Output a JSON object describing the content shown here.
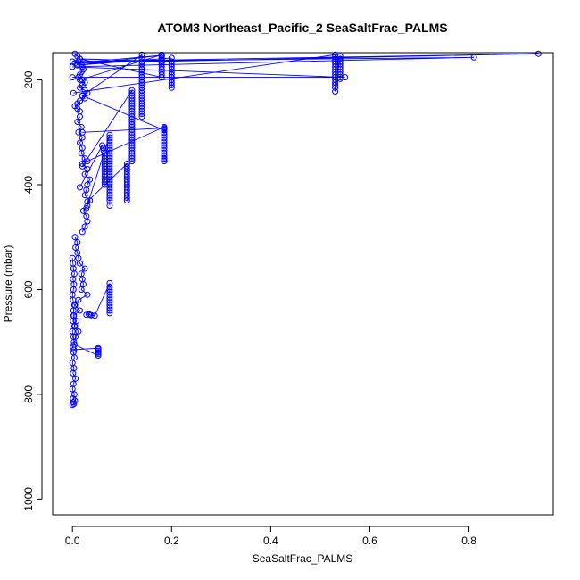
{
  "chart_data": {
    "type": "line",
    "title": "ATOM3 Northeast_Pacific_2 SeaSaltFrac_PALMS",
    "xlabel": "SeaSaltFrac_PALMS",
    "ylabel": "Pressure (mbar)",
    "xlim": [
      -0.04,
      0.97
    ],
    "ylim": [
      1030,
      148
    ],
    "y_reversed": true,
    "x_ticks": [
      0.0,
      0.2,
      0.4,
      0.6,
      0.8
    ],
    "x_tick_labels": [
      "0.0",
      "0.2",
      "0.4",
      "0.6",
      "0.8"
    ],
    "y_ticks": [
      200,
      400,
      600,
      800,
      1000
    ],
    "y_tick_labels": [
      "200",
      "400",
      "600",
      "800",
      "1000"
    ],
    "grid": false,
    "marker": "open-circle",
    "colors": {
      "series": "#0000ff",
      "axes": "#000000",
      "background": "#ffffff"
    },
    "series": [
      {
        "x": [
          0.0,
          0.003,
          0.002,
          0.005,
          0.001,
          0.004,
          0.0,
          0.002,
          0.006,
          0.001,
          0.003,
          0.0,
          0.004,
          0.002,
          0.001,
          0.003,
          0.002,
          0.0,
          0.005,
          0.001,
          0.003,
          0.002,
          0.004,
          0.001,
          0.0,
          0.002,
          0.003,
          0.001,
          0.004,
          0.002,
          0.001,
          0.0
        ],
        "y": [
          820,
          818,
          815,
          812,
          808,
          800,
          790,
          780,
          770,
          760,
          750,
          740,
          730,
          720,
          710,
          700,
          690,
          680,
          670,
          660,
          650,
          640,
          630,
          620,
          610,
          600,
          590,
          580,
          570,
          560,
          550,
          540
        ]
      },
      {
        "x": [
          0.003,
          0.052,
          0.052,
          0.052,
          0.052,
          0.052,
          0.052,
          0.004,
          0.006,
          0.012,
          0.004,
          0.008,
          0.002,
          0.015,
          0.005,
          0.012,
          0.03,
          0.018,
          0.022,
          0.02,
          0.018,
          0.025,
          0.015,
          0.012,
          0.01,
          0.006,
          0.01,
          0.005
        ],
        "y": [
          715,
          712,
          714,
          717,
          720,
          723,
          726,
          705,
          690,
          680,
          670,
          660,
          650,
          640,
          630,
          620,
          610,
          600,
          590,
          580,
          570,
          560,
          550,
          540,
          530,
          520,
          510,
          500
        ]
      },
      {
        "x": [
          0.028,
          0.033,
          0.035,
          0.038,
          0.045,
          0.075,
          0.075,
          0.075,
          0.075,
          0.075,
          0.075,
          0.075,
          0.075,
          0.075,
          0.075,
          0.075,
          0.075
        ],
        "y": [
          648,
          647,
          648,
          649,
          650,
          588,
          595,
          600,
          605,
          610,
          615,
          620,
          625,
          630,
          635,
          640,
          645
        ]
      },
      {
        "x": [
          0.02,
          0.025,
          0.03,
          0.028,
          0.022,
          0.03,
          0.035,
          0.025,
          0.028,
          0.03,
          0.035,
          0.025,
          0.03,
          0.02,
          0.025,
          0.018,
          0.02,
          0.015,
          0.02,
          0.012,
          0.018,
          0.01,
          0.015
        ],
        "y": [
          490,
          480,
          470,
          460,
          450,
          440,
          430,
          420,
          410,
          400,
          390,
          380,
          370,
          360,
          350,
          340,
          330,
          320,
          310,
          300,
          290,
          280,
          270
        ]
      },
      {
        "x": [
          0.015,
          0.06,
          0.062,
          0.063,
          0.065,
          0.065,
          0.065,
          0.065,
          0.065,
          0.065,
          0.065,
          0.065,
          0.065,
          0.065,
          0.065,
          0.065,
          0.065
        ],
        "y": [
          405,
          325,
          330,
          335,
          340,
          345,
          350,
          355,
          360,
          365,
          370,
          375,
          380,
          385,
          390,
          395,
          400
        ]
      },
      {
        "x": [
          0.028,
          0.075,
          0.075,
          0.075,
          0.075,
          0.075,
          0.075,
          0.075,
          0.075,
          0.075,
          0.075,
          0.075,
          0.075,
          0.075,
          0.075,
          0.075,
          0.075,
          0.075,
          0.075,
          0.075,
          0.075,
          0.075,
          0.075,
          0.075,
          0.075,
          0.075,
          0.075,
          0.075
        ],
        "y": [
          445,
          305,
          310,
          315,
          320,
          325,
          330,
          335,
          340,
          345,
          350,
          355,
          360,
          365,
          370,
          375,
          380,
          385,
          390,
          395,
          400,
          405,
          410,
          415,
          420,
          425,
          430,
          440
        ]
      },
      {
        "x": [
          0.03,
          0.11,
          0.11,
          0.11,
          0.11,
          0.11,
          0.11,
          0.11,
          0.11,
          0.11,
          0.11,
          0.11,
          0.11,
          0.11,
          0.11,
          0.11
        ],
        "y": [
          432,
          360,
          365,
          370,
          375,
          380,
          385,
          390,
          395,
          400,
          405,
          410,
          415,
          420,
          425,
          430
        ]
      },
      {
        "x": [
          0.02,
          0.12,
          0.12,
          0.12,
          0.12,
          0.12,
          0.12,
          0.12,
          0.12,
          0.12,
          0.12,
          0.12,
          0.12,
          0.12,
          0.12,
          0.12,
          0.12,
          0.12,
          0.12,
          0.12,
          0.12,
          0.12,
          0.12,
          0.12,
          0.12,
          0.12,
          0.12,
          0.12,
          0.12
        ],
        "y": [
          365,
          220,
          225,
          230,
          235,
          240,
          245,
          250,
          255,
          260,
          265,
          270,
          275,
          280,
          285,
          290,
          295,
          300,
          305,
          310,
          315,
          320,
          325,
          330,
          335,
          340,
          345,
          350,
          355
        ]
      },
      {
        "x": [
          0.03,
          0.185,
          0.185,
          0.185,
          0.185,
          0.185,
          0.185,
          0.185,
          0.185,
          0.185,
          0.185,
          0.185,
          0.185,
          0.185,
          0.185,
          0.185
        ],
        "y": [
          355,
          290,
          295,
          300,
          305,
          310,
          315,
          320,
          325,
          330,
          335,
          340,
          345,
          350,
          352,
          355
        ]
      },
      {
        "x": [
          0.02,
          0.185,
          0.185,
          0.185,
          0.02,
          0.14,
          0.14,
          0.14,
          0.14,
          0.14,
          0.14,
          0.14,
          0.14,
          0.14,
          0.14,
          0.14,
          0.14,
          0.14,
          0.14,
          0.14,
          0.14,
          0.14,
          0.14,
          0.14,
          0.14,
          0.14,
          0.14,
          0.14,
          0.14
        ],
        "y": [
          300,
          292,
          294,
          296,
          230,
          152,
          160,
          165,
          170,
          175,
          180,
          185,
          190,
          195,
          200,
          205,
          210,
          215,
          220,
          225,
          230,
          235,
          240,
          245,
          250,
          255,
          260,
          265,
          270
        ]
      },
      {
        "x": [
          0.015,
          0.18,
          0.18,
          0.18,
          0.18,
          0.18,
          0.18,
          0.18,
          0.18,
          0.18,
          0.18,
          0.18,
          0.18,
          0.015,
          0.2,
          0.2,
          0.2,
          0.2,
          0.2,
          0.2,
          0.2,
          0.2,
          0.2,
          0.2,
          0.2
        ],
        "y": [
          200,
          152,
          155,
          158,
          161,
          164,
          167,
          170,
          175,
          180,
          185,
          190,
          195,
          160,
          165,
          170,
          175,
          180,
          185,
          190,
          195,
          200,
          205,
          210,
          215
        ]
      },
      {
        "x": [
          0.002,
          0.53,
          0.53,
          0.53,
          0.53,
          0.53,
          0.53,
          0.53,
          0.53,
          0.53,
          0.53,
          0.53,
          0.53,
          0.53,
          0.53,
          0.53,
          0.54,
          0.54,
          0.54,
          0.54,
          0.54,
          0.54,
          0.54,
          0.54,
          0.54,
          0.54
        ],
        "y": [
          225,
          152,
          156,
          160,
          165,
          170,
          175,
          180,
          185,
          190,
          195,
          200,
          205,
          210,
          215,
          222,
          155,
          160,
          165,
          170,
          175,
          180,
          185,
          190,
          195,
          198
        ]
      },
      {
        "x": [
          0.0,
          0.55,
          0.0,
          0.81,
          0.0,
          0.94,
          0.005,
          0.18,
          0.01,
          0.2
        ],
        "y": [
          195,
          195,
          175,
          157,
          165,
          150,
          168,
          153,
          172,
          158
        ]
      },
      {
        "x": [
          0.005,
          0.01,
          0.015,
          0.012,
          0.018,
          0.02,
          0.022,
          0.018,
          0.015,
          0.012,
          0.02,
          0.025,
          0.02,
          0.015,
          0.025,
          0.03,
          0.02,
          0.025,
          0.015,
          0.01,
          0.005,
          0.01,
          0.015
        ],
        "y": [
          150,
          155,
          160,
          165,
          170,
          175,
          180,
          185,
          190,
          195,
          200,
          205,
          210,
          215,
          220,
          225,
          230,
          235,
          240,
          245,
          250,
          255,
          260
        ]
      }
    ]
  }
}
